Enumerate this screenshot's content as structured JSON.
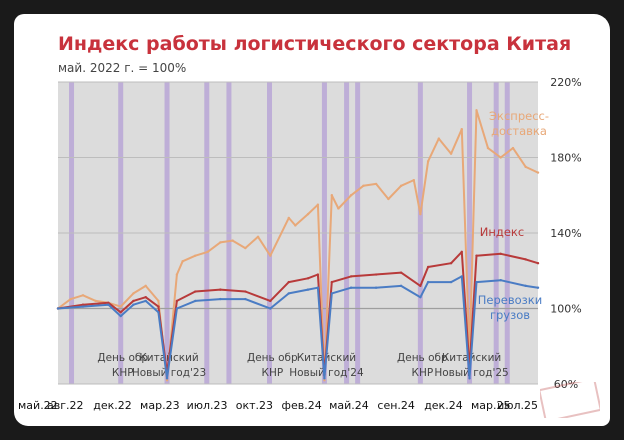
{
  "chart_data": {
    "type": "line",
    "title": "Индекс работы логистического сектора Китая",
    "subtitle": "май. 2022 г. = 100%",
    "x_tick_labels": [
      "май.22",
      "авг.22",
      "дек.22",
      "мар.23",
      "июл.23",
      "окт.23",
      "фев.24",
      "май.24",
      "сен.24",
      "дек.24",
      "мар.25",
      "июл.25"
    ],
    "y_ticks": [
      "60%",
      "100%",
      "140%",
      "180%",
      "220%"
    ],
    "ylim": [
      60,
      220
    ],
    "x_start": "2022-05-01",
    "x_end": "2025-07-15",
    "grid": true,
    "annotations": [
      {
        "text": "День обр\nКНР",
        "date": "2022-10-01"
      },
      {
        "text": "Китайский\nНовый год'23",
        "date": "2023-01-22"
      },
      {
        "text": "День обр\nКНР",
        "date": "2023-10-01"
      },
      {
        "text": "Китайский\nНовый год'24",
        "date": "2024-02-10"
      },
      {
        "text": "День обр\nКНР",
        "date": "2024-10-01"
      },
      {
        "text": "Китайский\nНовый год'25",
        "date": "2025-01-29"
      }
    ],
    "holiday_bands": [
      "2022-06-03",
      "2022-10-01",
      "2023-01-22",
      "2023-04-29",
      "2023-06-22",
      "2023-09-29",
      "2024-02-10",
      "2024-04-04",
      "2024-05-01",
      "2024-10-01",
      "2025-01-29",
      "2025-04-04",
      "2025-05-01"
    ],
    "series": [
      {
        "name": "Экспресс-\nдоставка",
        "color": "#E8A878",
        "dates": [
          "2022-05-01",
          "2022-06-01",
          "2022-07-01",
          "2022-08-01",
          "2022-09-01",
          "2022-10-01",
          "2022-11-01",
          "2022-12-01",
          "2023-01-01",
          "2023-01-22",
          "2023-02-15",
          "2023-03-01",
          "2023-04-01",
          "2023-05-01",
          "2023-06-01",
          "2023-07-01",
          "2023-08-01",
          "2023-09-01",
          "2023-10-01",
          "2023-11-15",
          "2023-12-01",
          "2024-01-01",
          "2024-01-25",
          "2024-02-10",
          "2024-02-28",
          "2024-03-15",
          "2024-04-15",
          "2024-05-15",
          "2024-06-15",
          "2024-07-15",
          "2024-08-15",
          "2024-09-15",
          "2024-10-01",
          "2024-10-20",
          "2024-11-15",
          "2024-12-15",
          "2025-01-10",
          "2025-01-29",
          "2025-02-15",
          "2025-03-15",
          "2025-04-15",
          "2025-05-15",
          "2025-06-15",
          "2025-07-15"
        ],
        "values": [
          100,
          105,
          107,
          104,
          103,
          101,
          108,
          112,
          104,
          62,
          118,
          125,
          128,
          130,
          135,
          136,
          132,
          138,
          128,
          148,
          144,
          150,
          155,
          62,
          160,
          153,
          160,
          165,
          166,
          158,
          165,
          168,
          150,
          178,
          190,
          182,
          195,
          75,
          205,
          185,
          180,
          185,
          175,
          172
        ]
      },
      {
        "name": "Индекс",
        "color": "#B83A3A",
        "dates": [
          "2022-05-01",
          "2022-07-01",
          "2022-09-01",
          "2022-10-01",
          "2022-11-01",
          "2022-12-01",
          "2023-01-01",
          "2023-01-22",
          "2023-02-15",
          "2023-04-01",
          "2023-06-01",
          "2023-08-01",
          "2023-10-01",
          "2023-11-15",
          "2024-01-01",
          "2024-01-25",
          "2024-02-10",
          "2024-02-28",
          "2024-04-15",
          "2024-06-15",
          "2024-08-15",
          "2024-10-01",
          "2024-10-20",
          "2024-12-15",
          "2025-01-10",
          "2025-01-29",
          "2025-02-15",
          "2025-04-15",
          "2025-06-15",
          "2025-07-15"
        ],
        "values": [
          100,
          102,
          103,
          98,
          104,
          106,
          101,
          66,
          104,
          109,
          110,
          109,
          104,
          114,
          116,
          118,
          65,
          114,
          117,
          118,
          119,
          112,
          122,
          124,
          130,
          68,
          128,
          129,
          126,
          124
        ]
      },
      {
        "name": "Перевозки\nгрузов",
        "color": "#4A7CC4",
        "dates": [
          "2022-05-01",
          "2022-07-01",
          "2022-09-01",
          "2022-10-01",
          "2022-11-01",
          "2022-12-01",
          "2023-01-01",
          "2023-01-22",
          "2023-02-15",
          "2023-04-01",
          "2023-06-01",
          "2023-08-01",
          "2023-10-01",
          "2023-11-15",
          "2024-01-01",
          "2024-01-25",
          "2024-02-10",
          "2024-02-28",
          "2024-04-15",
          "2024-06-15",
          "2024-08-15",
          "2024-10-01",
          "2024-10-20",
          "2024-12-15",
          "2025-01-10",
          "2025-01-29",
          "2025-02-15",
          "2025-04-15",
          "2025-06-15",
          "2025-07-15"
        ],
        "values": [
          100,
          101,
          102,
          96,
          102,
          104,
          98,
          63,
          100,
          104,
          105,
          105,
          100,
          108,
          110,
          111,
          63,
          108,
          111,
          111,
          112,
          106,
          114,
          114,
          117,
          63,
          114,
          115,
          112,
          111
        ]
      }
    ]
  }
}
